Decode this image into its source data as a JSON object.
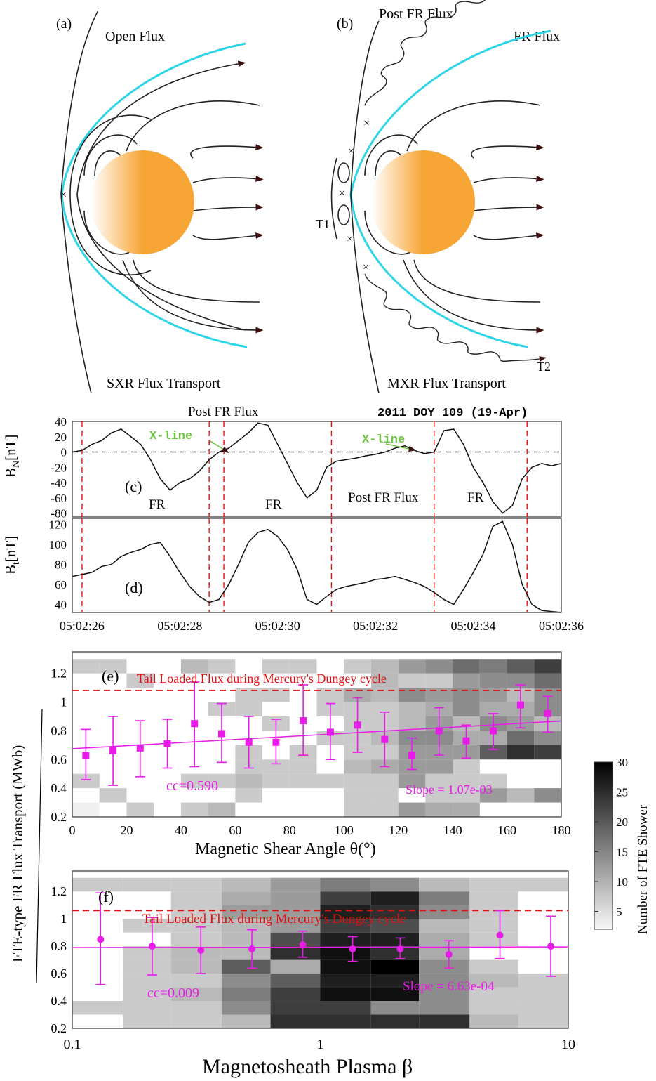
{
  "colors": {
    "cyan": "#2fd5e6",
    "sun": "#f7a535",
    "red": "#e01010",
    "magenta": "#e81ce8",
    "green": "#6cc43f",
    "line": "#222222"
  },
  "panel_a": {
    "label": "(a)",
    "open_flux": "Open Flux",
    "caption": "SXR Flux Transport"
  },
  "panel_b": {
    "label": "(b)",
    "post_fr_flux": "Post FR Flux",
    "fr_flux": "FR Flux",
    "t1": "T1",
    "t2": "T2",
    "caption": "MXR Flux Transport"
  },
  "timeseries": {
    "title": "2011 DOY 109 (19-Apr)",
    "top_label": "Post FR Flux",
    "bn_label": "B",
    "bn_sub": "N",
    "bn_unit": "[nT]",
    "bt_label": "B",
    "bt_sub": "t",
    "bt_unit": "[nT]",
    "panel_c": "(c)",
    "panel_d": "(d)",
    "xline_1": "X-line",
    "xline_2": "X-line",
    "region_labels": [
      "FR",
      "FR",
      "Post FR Flux",
      "FR"
    ],
    "time_ticks": [
      "05:02:26",
      "05:02:28",
      "05:02:30",
      "05:02:32",
      "05:02:34",
      "05:02:36"
    ],
    "bn_ticks": [
      "40",
      "20",
      "0",
      "-20",
      "-40",
      "-60",
      "-80"
    ],
    "bt_ticks": [
      "120",
      "100",
      "80",
      "60",
      "40"
    ]
  },
  "shared": {
    "ylabel": "FTE-type FR Flux Transport (MWb)",
    "colorbar_label": "Number of FTE Shower",
    "colorbar_ticks": [
      "30",
      "25",
      "20",
      "15",
      "10",
      "5"
    ],
    "dungey_label": "Tail Loaded Flux during Mercury's Dungey cycle"
  },
  "chart_data": [
    {
      "type": "line",
      "title": "",
      "xlabel": "",
      "ylabel": "B_N [nT]",
      "xlim": [
        26.2,
        36.2
      ],
      "ylim": [
        -85,
        40
      ],
      "x": [
        26.2,
        26.4,
        26.6,
        26.8,
        27.0,
        27.2,
        27.4,
        27.6,
        27.8,
        28.0,
        28.2,
        28.4,
        28.6,
        28.8,
        29.0,
        29.2,
        29.4,
        29.6,
        29.8,
        30.0,
        30.2,
        30.4,
        30.6,
        30.8,
        31.0,
        31.2,
        31.4,
        31.6,
        31.8,
        32.0,
        32.2,
        32.4,
        32.6,
        32.8,
        33.0,
        33.2,
        33.4,
        33.6,
        33.8,
        34.0,
        34.2,
        34.4,
        34.6,
        34.8,
        35.0,
        35.2,
        35.4,
        35.6,
        35.8,
        36.0,
        36.2
      ],
      "values": [
        0,
        2,
        10,
        15,
        25,
        30,
        20,
        10,
        -10,
        -35,
        -50,
        -40,
        -35,
        -25,
        -10,
        0,
        5,
        15,
        25,
        38,
        35,
        10,
        -15,
        -40,
        -60,
        -50,
        -20,
        -12,
        -10,
        -8,
        -5,
        -3,
        0,
        5,
        8,
        2,
        -2,
        0,
        28,
        30,
        10,
        -20,
        -40,
        -65,
        -80,
        -70,
        -35,
        -20,
        -15,
        -18,
        -15
      ],
      "vlines": [
        26.4,
        29.0,
        29.3,
        31.5,
        33.6,
        35.5
      ],
      "hline": 0
    },
    {
      "type": "line",
      "title": "",
      "xlabel": "",
      "ylabel": "B_t [nT]",
      "xlim": [
        26.2,
        36.2
      ],
      "ylim": [
        32,
        126
      ],
      "x": [
        26.2,
        26.4,
        26.6,
        26.8,
        27.0,
        27.2,
        27.4,
        27.6,
        27.8,
        28.0,
        28.2,
        28.4,
        28.6,
        28.8,
        29.0,
        29.2,
        29.4,
        29.6,
        29.8,
        30.0,
        30.2,
        30.4,
        30.6,
        30.8,
        31.0,
        31.2,
        31.4,
        31.6,
        31.8,
        32.0,
        32.2,
        32.4,
        32.6,
        32.8,
        33.0,
        33.2,
        33.4,
        33.6,
        33.8,
        34.0,
        34.2,
        34.4,
        34.6,
        34.8,
        35.0,
        35.2,
        35.4,
        35.6,
        35.8,
        36.0,
        36.2
      ],
      "values": [
        68,
        70,
        72,
        78,
        80,
        88,
        92,
        95,
        100,
        102,
        88,
        72,
        58,
        48,
        42,
        45,
        60,
        80,
        102,
        112,
        115,
        108,
        95,
        75,
        45,
        40,
        48,
        55,
        58,
        60,
        62,
        65,
        66,
        68,
        65,
        62,
        58,
        52,
        45,
        40,
        55,
        72,
        90,
        118,
        123,
        100,
        60,
        40,
        34,
        33,
        32
      ],
      "vlines": [
        26.4,
        29.0,
        29.3,
        31.5,
        33.6,
        35.5
      ]
    },
    {
      "type": "scatter",
      "title": "",
      "xlabel": "Magnetic Shear Angle θ(°)",
      "ylabel": "FTE-type FR Flux Transport (MWb)",
      "xlim": [
        0,
        180
      ],
      "ylim": [
        0.2,
        1.35
      ],
      "x": [
        5,
        15,
        25,
        35,
        45,
        55,
        65,
        75,
        85,
        95,
        105,
        115,
        125,
        135,
        145,
        155,
        165,
        175
      ],
      "values": [
        0.63,
        0.66,
        0.68,
        0.71,
        0.85,
        0.78,
        0.72,
        0.72,
        0.87,
        0.79,
        0.84,
        0.74,
        0.63,
        0.8,
        0.73,
        0.8,
        0.98,
        0.92
      ],
      "err_low": [
        0.17,
        0.24,
        0.2,
        0.17,
        0.3,
        0.2,
        0.18,
        0.15,
        0.24,
        0.19,
        0.19,
        0.19,
        0.1,
        0.17,
        0.12,
        0.13,
        0.16,
        0.13
      ],
      "err_high": [
        0.18,
        0.24,
        0.19,
        0.17,
        0.29,
        0.21,
        0.18,
        0.16,
        0.25,
        0.2,
        0.19,
        0.19,
        0.12,
        0.16,
        0.11,
        0.12,
        0.14,
        0.12
      ],
      "fit": {
        "x": [
          0,
          180
        ],
        "y": [
          0.675,
          0.868
        ]
      },
      "dungey": 1.08,
      "panel": "(e)",
      "cc": "cc=0.590",
      "slope": "Slope = 1.07e-03",
      "x_ticks": [
        "0",
        "20",
        "40",
        "60",
        "80",
        "100",
        "120",
        "140",
        "160",
        "180"
      ],
      "y_ticks": [
        "0.2",
        "0.4",
        "0.6",
        "0.8",
        "1",
        "1.2"
      ],
      "heatmap": {
        "xbins": 18,
        "ybins": [
          0.2,
          0.3,
          0.4,
          0.5,
          0.6,
          0.7,
          0.8,
          0.9,
          1.0,
          1.1,
          1.2,
          1.3
        ],
        "cells": [
          [
            1,
            0,
            6,
            0,
            6,
            8,
            0,
            0,
            0,
            0,
            6,
            6,
            12,
            10,
            10,
            0,
            0,
            0
          ],
          [
            0,
            6,
            0,
            0,
            0,
            0,
            6,
            0,
            0,
            0,
            6,
            6,
            0,
            6,
            6,
            12,
            8,
            14
          ],
          [
            6,
            0,
            0,
            0,
            6,
            6,
            8,
            6,
            6,
            6,
            6,
            6,
            12,
            6,
            6,
            6,
            0,
            0
          ],
          [
            0,
            0,
            0,
            0,
            0,
            0,
            6,
            6,
            6,
            0,
            8,
            10,
            12,
            12,
            6,
            0,
            0,
            0
          ],
          [
            0,
            0,
            0,
            0,
            0,
            0,
            6,
            0,
            6,
            0,
            6,
            6,
            12,
            12,
            12,
            20,
            26,
            24
          ],
          [
            0,
            0,
            0,
            0,
            0,
            0,
            0,
            0,
            0,
            6,
            6,
            8,
            14,
            14,
            10,
            10,
            18,
            14
          ],
          [
            0,
            0,
            0,
            0,
            0,
            0,
            0,
            6,
            0,
            0,
            6,
            6,
            8,
            12,
            8,
            14,
            12,
            8
          ],
          [
            0,
            0,
            0,
            0,
            0,
            6,
            6,
            0,
            0,
            6,
            6,
            6,
            8,
            10,
            14,
            10,
            10,
            14
          ],
          [
            0,
            0,
            0,
            0,
            0,
            0,
            6,
            6,
            0,
            6,
            10,
            8,
            14,
            12,
            14,
            12,
            8,
            14
          ],
          [
            0,
            0,
            6,
            0,
            0,
            0,
            0,
            0,
            0,
            0,
            0,
            8,
            6,
            6,
            12,
            14,
            14,
            18
          ],
          [
            6,
            6,
            0,
            0,
            8,
            6,
            0,
            6,
            6,
            0,
            6,
            8,
            12,
            14,
            18,
            16,
            20,
            24
          ]
        ]
      }
    },
    {
      "type": "scatter",
      "title": "",
      "xlabel": "Magnetosheath Plasma β",
      "ylabel": "FTE-type FR Flux Transport (MWb)",
      "xscale": "log",
      "xlim": [
        0.1,
        10
      ],
      "ylim": [
        0.2,
        1.35
      ],
      "x": [
        0.13,
        0.21,
        0.33,
        0.53,
        0.85,
        1.35,
        2.1,
        3.3,
        5.3,
        8.5
      ],
      "values": [
        0.85,
        0.8,
        0.77,
        0.78,
        0.81,
        0.78,
        0.78,
        0.74,
        0.88,
        0.8
      ],
      "err_low": [
        0.33,
        0.21,
        0.17,
        0.14,
        0.09,
        0.09,
        0.07,
        0.1,
        0.17,
        0.22
      ],
      "err_high": [
        0.34,
        0.21,
        0.17,
        0.14,
        0.1,
        0.09,
        0.08,
        0.1,
        0.18,
        0.22
      ],
      "fit": {
        "x": [
          0.1,
          10
        ],
        "y": [
          0.79,
          0.795
        ]
      },
      "dungey": 1.06,
      "panel": "(f)",
      "cc": "cc=0.009",
      "slope": "Slope = 6.63e-04",
      "x_ticks": [
        "0.1",
        "1",
        "10"
      ],
      "y_ticks": [
        "0.2",
        "0.4",
        "0.6",
        "0.8",
        "1",
        "1.2"
      ],
      "heatmap": {
        "xbins": [
          0.1,
          0.16,
          0.25,
          0.4,
          0.63,
          1.0,
          1.6,
          2.5,
          4.0,
          6.3,
          10
        ],
        "ybins": [
          0.2,
          0.3,
          0.4,
          0.5,
          0.6,
          0.7,
          0.8,
          0.9,
          1.0,
          1.1,
          1.2,
          1.3
        ],
        "cells": [
          [
            0,
            6,
            6,
            8,
            26,
            26,
            26,
            26,
            8,
            6
          ],
          [
            6,
            6,
            6,
            14,
            24,
            24,
            14,
            14,
            6,
            6
          ],
          [
            0,
            6,
            8,
            16,
            24,
            30,
            30,
            14,
            6,
            6
          ],
          [
            0,
            6,
            6,
            14,
            20,
            28,
            28,
            14,
            8,
            6
          ],
          [
            0,
            6,
            8,
            20,
            10,
            30,
            32,
            14,
            6,
            0
          ],
          [
            0,
            6,
            8,
            8,
            26,
            30,
            26,
            10,
            0,
            0
          ],
          [
            0,
            0,
            6,
            8,
            22,
            28,
            28,
            10,
            6,
            0
          ],
          [
            0,
            6,
            6,
            8,
            12,
            24,
            22,
            8,
            6,
            0
          ],
          [
            0,
            0,
            6,
            12,
            12,
            28,
            26,
            14,
            6,
            0
          ],
          [
            0,
            0,
            6,
            10,
            12,
            24,
            28,
            16,
            6,
            0
          ],
          [
            6,
            6,
            6,
            8,
            12,
            16,
            14,
            8,
            6,
            6
          ]
        ]
      }
    }
  ]
}
